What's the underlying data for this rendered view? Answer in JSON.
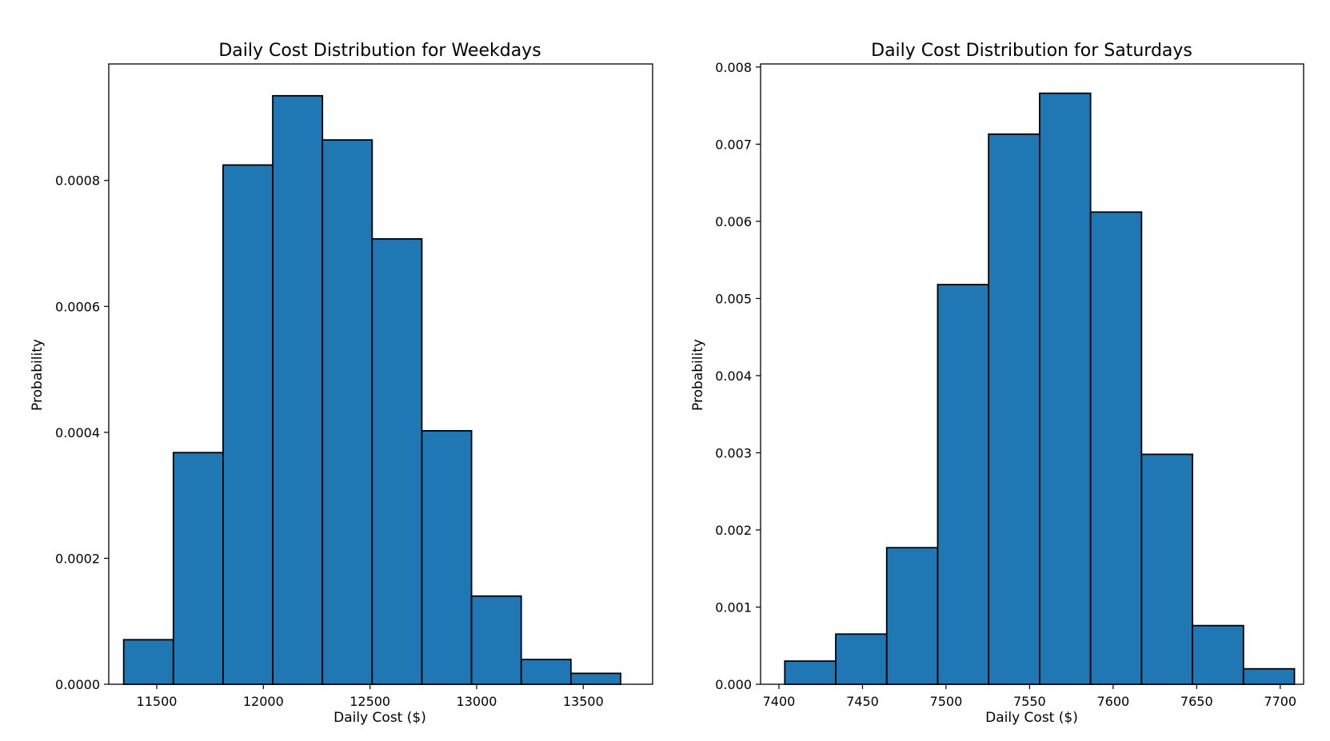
{
  "chart_data": [
    {
      "type": "bar",
      "title": "Daily Cost Distribution for Weekdays",
      "xlabel": "Daily Cost ($)",
      "ylabel": "Probability",
      "xlim": [
        11275,
        13825
      ],
      "ylim": [
        0,
        0.000985
      ],
      "xticks": [
        11500,
        12000,
        12500,
        13000,
        13500
      ],
      "xtick_labels": [
        "11500",
        "12000",
        "12500",
        "13000",
        "13500"
      ],
      "yticks": [
        0,
        0.0002,
        0.0004,
        0.0006,
        0.0008
      ],
      "ytick_labels": [
        "0.0000",
        "0.0002",
        "0.0004",
        "0.0006",
        "0.0008"
      ],
      "bin_edges": [
        11345,
        11578,
        11811,
        12044,
        12277,
        12510,
        12743,
        12976,
        13209,
        13442,
        13675
      ],
      "values": [
        7.07e-05,
        0.0003678,
        0.0008245,
        0.0009345,
        0.0008643,
        0.0007072,
        0.0004025,
        0.00014,
        3.93e-05,
        1.73e-05
      ],
      "grid": false,
      "colors": {
        "bar_fill": "#1f77b4",
        "bar_edge": "#000000"
      }
    },
    {
      "type": "bar",
      "title": "Daily Cost Distribution for Saturdays",
      "xlabel": "Daily Cost ($)",
      "ylabel": "Probability",
      "xlim": [
        7389,
        7714
      ],
      "ylim": [
        0,
        0.00804
      ],
      "xticks": [
        7400,
        7450,
        7500,
        7550,
        7600,
        7650,
        7700
      ],
      "xtick_labels": [
        "7400",
        "7450",
        "7500",
        "7550",
        "7600",
        "7650",
        "7700"
      ],
      "yticks": [
        0,
        0.001,
        0.002,
        0.003,
        0.004,
        0.005,
        0.006,
        0.007,
        0.008
      ],
      "ytick_labels": [
        "0.000",
        "0.001",
        "0.002",
        "0.003",
        "0.004",
        "0.005",
        "0.006",
        "0.007",
        "0.008"
      ],
      "bin_edges": [
        7403.5,
        7434,
        7464.5,
        7495,
        7525.5,
        7556,
        7586.5,
        7617,
        7647.5,
        7678,
        7708.5
      ],
      "values": [
        0.0003,
        0.00065,
        0.00177,
        0.00518,
        0.00713,
        0.00766,
        0.00612,
        0.00298,
        0.00076,
        0.0002
      ],
      "grid": false,
      "colors": {
        "bar_fill": "#1f77b4",
        "bar_edge": "#000000"
      }
    }
  ]
}
